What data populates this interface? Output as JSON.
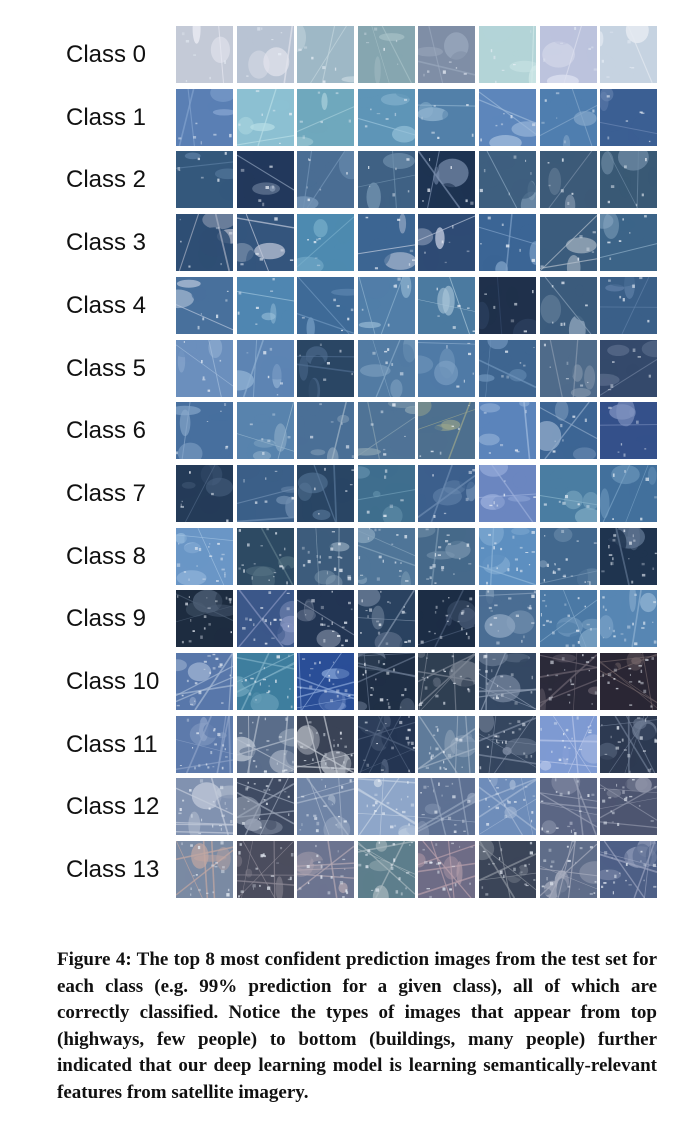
{
  "figure": {
    "rows": [
      {
        "label": "Class 0",
        "tiles": [
          [
            "#c4cad7",
            "#e8e9f2"
          ],
          [
            "#b8c3d3",
            "#e4e5ee"
          ],
          [
            "#9eb8c6",
            "#c4d6de"
          ],
          [
            "#86a6b0",
            "#a9c3c9"
          ],
          [
            "#7f8ea6",
            "#9aa8bd"
          ],
          [
            "#b3d4d7",
            "#d5ebea"
          ],
          [
            "#bcc3dd",
            "#dde0ef"
          ],
          [
            "#c6d3e1",
            "#e6ebf2"
          ]
        ]
      },
      {
        "label": "Class 1",
        "tiles": [
          [
            "#5a7fb4",
            "#83a3cf"
          ],
          [
            "#8cc0d2",
            "#b9dfe7"
          ],
          [
            "#6fa8bd",
            "#a5cdd9"
          ],
          [
            "#5e95b7",
            "#9ac4dc"
          ],
          [
            "#5280a9",
            "#8fb3cf"
          ],
          [
            "#5d86bb",
            "#9bb8d9"
          ],
          [
            "#4f7eaf",
            "#86a8cb"
          ],
          [
            "#3b5f93",
            "#6b86b3"
          ]
        ]
      },
      {
        "label": "Class 2",
        "tiles": [
          [
            "#34587c",
            "#5b7ea2"
          ],
          [
            "#22385c",
            "#8fa1bb"
          ],
          [
            "#4a6d93",
            "#7596b8"
          ],
          [
            "#3f6184",
            "#6f90ad"
          ],
          [
            "#1d3352",
            "#7b8fae"
          ],
          [
            "#3e5f7f",
            "#8aa6bf"
          ],
          [
            "#3c5a78",
            "#7a8fa8"
          ],
          [
            "#395975",
            "#6d8aa4"
          ]
        ]
      },
      {
        "label": "Class 3",
        "tiles": [
          [
            "#2e4e74",
            "#a7afc2"
          ],
          [
            "#34557d",
            "#c3cadb"
          ],
          [
            "#4d8ab0",
            "#78aecb"
          ],
          [
            "#3c6592",
            "#c6cfe0"
          ],
          [
            "#2e4b74",
            "#b9c3d8"
          ],
          [
            "#3b6595",
            "#7ea0c7"
          ],
          [
            "#3b5c7d",
            "#b4bfcb"
          ],
          [
            "#3c6488",
            "#8eaec7"
          ]
        ]
      },
      {
        "label": "Class 4",
        "tiles": [
          [
            "#48709c",
            "#b8c6dc"
          ],
          [
            "#4f86b1",
            "#9cc2db"
          ],
          [
            "#3e6a97",
            "#6f97bf"
          ],
          [
            "#517ea8",
            "#8fb3cf"
          ],
          [
            "#4b7aa0",
            "#aac7da"
          ],
          [
            "#1f304b",
            "#33486a"
          ],
          [
            "#3b5b7c",
            "#8aa1b8"
          ],
          [
            "#3a5f88",
            "#5f80a8"
          ]
        ]
      },
      {
        "label": "Class 5",
        "tiles": [
          [
            "#6b8fbd",
            "#a3bddc"
          ],
          [
            "#5d84b3",
            "#8fb0d2"
          ],
          [
            "#2a4664",
            "#4e6c8f"
          ],
          [
            "#527ba3",
            "#87a9c7"
          ],
          [
            "#4f7aa6",
            "#88aacb"
          ],
          [
            "#3e6590",
            "#6f94bb"
          ],
          [
            "#4f6b8a",
            "#8a9bb0"
          ],
          [
            "#34496b",
            "#6e7f9c"
          ]
        ]
      },
      {
        "label": "Class 6",
        "tiles": [
          [
            "#476f9e",
            "#8aa9cc"
          ],
          [
            "#5883ad",
            "#99b8d0"
          ],
          [
            "#4a6f96",
            "#a3b7c8"
          ],
          [
            "#4f7396",
            "#8aa3b2"
          ],
          [
            "#4d6f8e",
            "#9da78c"
          ],
          [
            "#5b84bb",
            "#a3bde0"
          ],
          [
            "#3d6594",
            "#8ea9c8"
          ],
          [
            "#34508a",
            "#7f92c0"
          ]
        ]
      },
      {
        "label": "Class 7",
        "tiles": [
          [
            "#243b58",
            "#4d6584"
          ],
          [
            "#3b5f88",
            "#6e8db0"
          ],
          [
            "#294564",
            "#577799"
          ],
          [
            "#3f6e8e",
            "#6f9cb6"
          ],
          [
            "#3c5f8c",
            "#6d8cb2"
          ],
          [
            "#6b86c0",
            "#9aaedb"
          ],
          [
            "#4a7da2",
            "#86b1c9"
          ],
          [
            "#42709c",
            "#7aa3c6"
          ]
        ]
      },
      {
        "label": "Class 8",
        "tiles": [
          [
            "#6a96c6",
            "#a2c3e3"
          ],
          [
            "#2d4a63",
            "#5d7a89"
          ],
          [
            "#3d5c7c",
            "#8ba2b7"
          ],
          [
            "#4f7598",
            "#86a4bc"
          ],
          [
            "#46698a",
            "#7c98b1"
          ],
          [
            "#5d8fc0",
            "#8fb6d9"
          ],
          [
            "#42688e",
            "#7796b4"
          ],
          [
            "#1f344f",
            "#5f7591"
          ]
        ]
      },
      {
        "label": "Class 9",
        "tiles": [
          [
            "#1d2c40",
            "#4c5e74"
          ],
          [
            "#3b5789",
            "#8594bf"
          ],
          [
            "#223553",
            "#7d8aa2"
          ],
          [
            "#2a4260",
            "#8597ae"
          ],
          [
            "#1c2d45",
            "#4a5c78"
          ],
          [
            "#4a6d93",
            "#8aa3bf"
          ],
          [
            "#4b79a5",
            "#86abcb"
          ],
          [
            "#5786b3",
            "#8fb2d2"
          ]
        ]
      },
      {
        "label": "Class 10",
        "tiles": [
          [
            "#5877aa",
            "#a7bad6"
          ],
          [
            "#3e7e9e",
            "#7fb1c7"
          ],
          [
            "#2a4e97",
            "#8aa7d9"
          ],
          [
            "#1f2f46",
            "#66768e"
          ],
          [
            "#2f3f52",
            "#7d8694"
          ],
          [
            "#344863",
            "#8d9cb2"
          ],
          [
            "#2b2a3a",
            "#6b6470"
          ],
          [
            "#2a2634",
            "#6f6266"
          ]
        ]
      },
      {
        "label": "Class 11",
        "tiles": [
          [
            "#5d7aab",
            "#8ea3c8"
          ],
          [
            "#5a6d8a",
            "#b5bfce"
          ],
          [
            "#3a4356",
            "#c4c9d2"
          ],
          [
            "#243552",
            "#51627e"
          ],
          [
            "#5f7b9a",
            "#a2b3c6"
          ],
          [
            "#35465f",
            "#7e8ca3"
          ],
          [
            "#7e9ad2",
            "#b9c7ea"
          ],
          [
            "#2d3a52",
            "#6e7c94"
          ]
        ]
      },
      {
        "label": "Class 12",
        "tiles": [
          [
            "#8192b0",
            "#c4ccdb"
          ],
          [
            "#3f4b63",
            "#9ba5b7"
          ],
          [
            "#6f84a6",
            "#aab8cd"
          ],
          [
            "#8ea6c9",
            "#c4d1e3"
          ],
          [
            "#5e7193",
            "#96a6bf"
          ],
          [
            "#6e8dba",
            "#a5b9d6"
          ],
          [
            "#5b6684",
            "#9aa1b6"
          ],
          [
            "#4d5570",
            "#8f94a8"
          ]
        ]
      },
      {
        "label": "Class 13",
        "tiles": [
          [
            "#7a8aa3",
            "#c4a8a2"
          ],
          [
            "#4b4d5e",
            "#8e8a96"
          ],
          [
            "#6c7490",
            "#b5a9b4"
          ],
          [
            "#5d7e8c",
            "#a8b8be"
          ],
          [
            "#6e6c86",
            "#b9a0ac"
          ],
          [
            "#3b4558",
            "#8d949f"
          ],
          [
            "#5f6d89",
            "#a9aebf"
          ],
          [
            "#4d5f86",
            "#9aa3bf"
          ]
        ]
      }
    ]
  },
  "caption": {
    "text": "Figure 4: The top 8 most confident prediction images from the test set for each class (e.g. 99% prediction for a given class), all of which are correctly classified. Notice the types of images that appear from top (highways, few people) to bottom (buildings, many people) further indicated that our deep learning model is learning semantically-relevant features from satellite imagery."
  }
}
